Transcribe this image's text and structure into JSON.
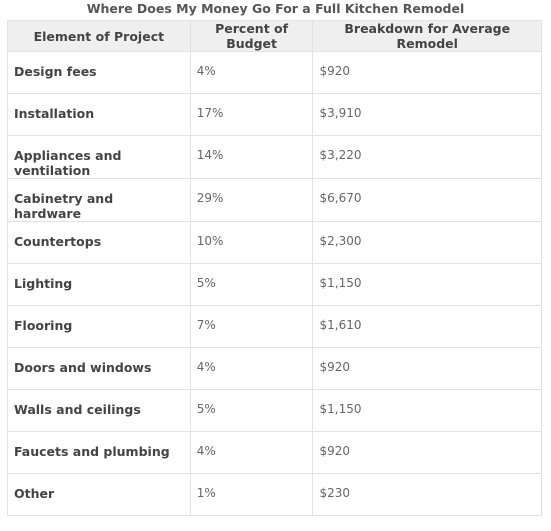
{
  "title": "Where Does My Money Go For a Full Kitchen Remodel",
  "table": {
    "headers": [
      "Element of Project",
      "Percent of Budget",
      "Breakdown for Average Remodel"
    ],
    "rows": [
      [
        "Design fees",
        "4%",
        "$920"
      ],
      [
        "Installation",
        "17%",
        "$3,910"
      ],
      [
        "Appliances and ventilation",
        "14%",
        "$3,220"
      ],
      [
        "Cabinetry and hardware",
        "29%",
        "$6,670"
      ],
      [
        "Countertops",
        "10%",
        "$2,300"
      ],
      [
        "Lighting",
        "5%",
        "$1,150"
      ],
      [
        "Flooring",
        "7%",
        "$1,610"
      ],
      [
        "Doors and windows",
        "4%",
        "$920"
      ],
      [
        "Walls and ceilings",
        "5%",
        "$1,150"
      ],
      [
        "Faucets and plumbing",
        "4%",
        "$920"
      ],
      [
        "Other",
        "1%",
        "$230"
      ]
    ]
  }
}
